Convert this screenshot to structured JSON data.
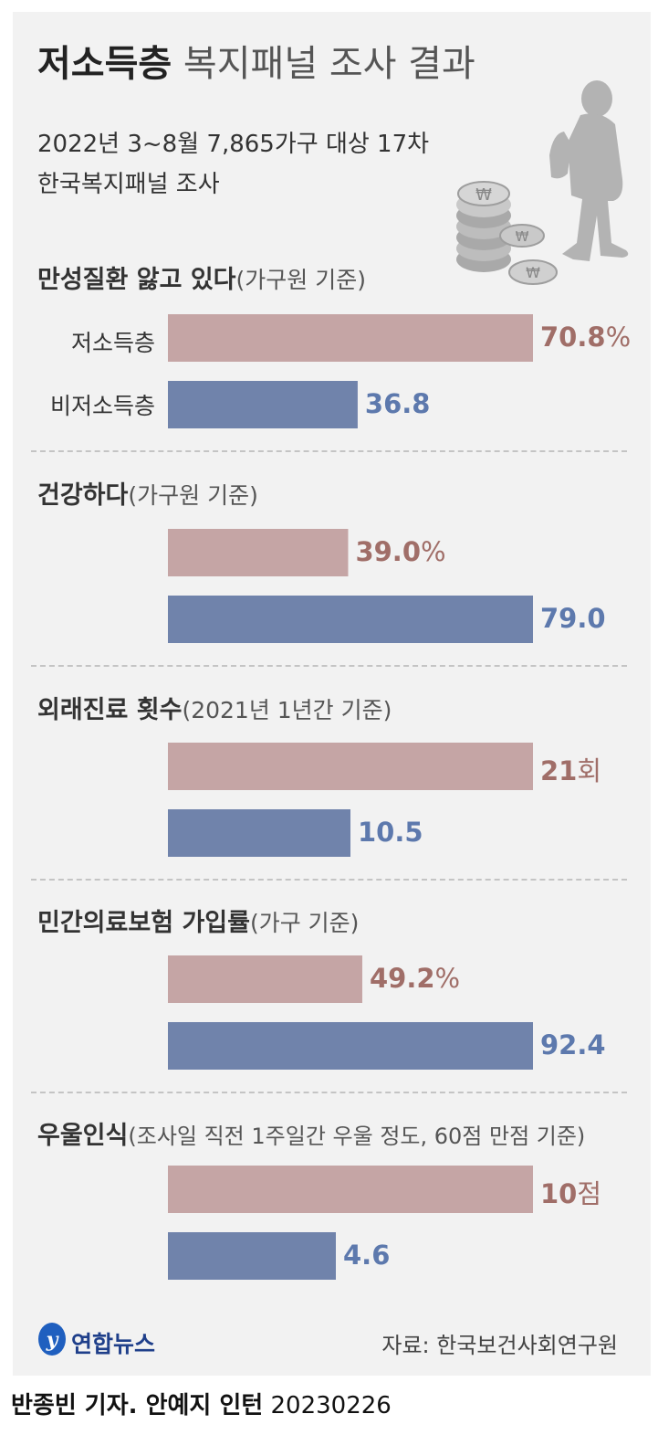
{
  "title": {
    "bold": "저소득층",
    "light": "복지패널 조사 결과"
  },
  "subtitle": [
    "2022년 3~8월 7,865가구 대상 17차",
    "한국복지패널 조사"
  ],
  "colors": {
    "low_income": "#c5a5a5",
    "non_low_income": "#7083ab",
    "low_label": "#a06e68",
    "non_label": "#5d79ad",
    "background": "#f2f2f2"
  },
  "chart_data": [
    {
      "type": "bar",
      "title": "만성질환 앓고 있다",
      "note": "(가구원 기준)",
      "categories": [
        "저소득층",
        "비저소득층"
      ],
      "values": [
        70.8,
        36.8
      ],
      "labels": [
        {
          "num": "70.8",
          "unit": "%"
        },
        {
          "num": "36.8",
          "unit": ""
        }
      ]
    },
    {
      "type": "bar",
      "title": "건강하다",
      "note": "(가구원 기준)",
      "categories": [
        "",
        ""
      ],
      "values": [
        39.0,
        79.0
      ],
      "labels": [
        {
          "num": "39.0",
          "unit": "%"
        },
        {
          "num": "79.0",
          "unit": ""
        }
      ]
    },
    {
      "type": "bar",
      "title": "외래진료 횟수",
      "note": "(2021년 1년간 기준)",
      "categories": [
        "",
        ""
      ],
      "values": [
        21,
        10.5
      ],
      "labels": [
        {
          "num": "21",
          "unit": "회"
        },
        {
          "num": "10.5",
          "unit": ""
        }
      ]
    },
    {
      "type": "bar",
      "title": "민간의료보험 가입률",
      "note": "(가구 기준)",
      "categories": [
        "",
        ""
      ],
      "values": [
        49.2,
        92.4
      ],
      "labels": [
        {
          "num": "49.2",
          "unit": "%"
        },
        {
          "num": "92.4",
          "unit": ""
        }
      ]
    },
    {
      "type": "bar",
      "title": "우울인식",
      "note": "(조사일 직전 1주일간 우울 정도, 60점 만점 기준)",
      "categories": [
        "",
        ""
      ],
      "values": [
        10,
        4.6
      ],
      "labels": [
        {
          "num": "10",
          "unit": "점"
        },
        {
          "num": "4.6",
          "unit": ""
        }
      ]
    }
  ],
  "logo": {
    "text": "연합뉴스"
  },
  "source": "자료: 한국보건사회연구원",
  "credit": {
    "bold": "반종빈 기자. 안예지 인턴",
    "date": "20230226"
  }
}
